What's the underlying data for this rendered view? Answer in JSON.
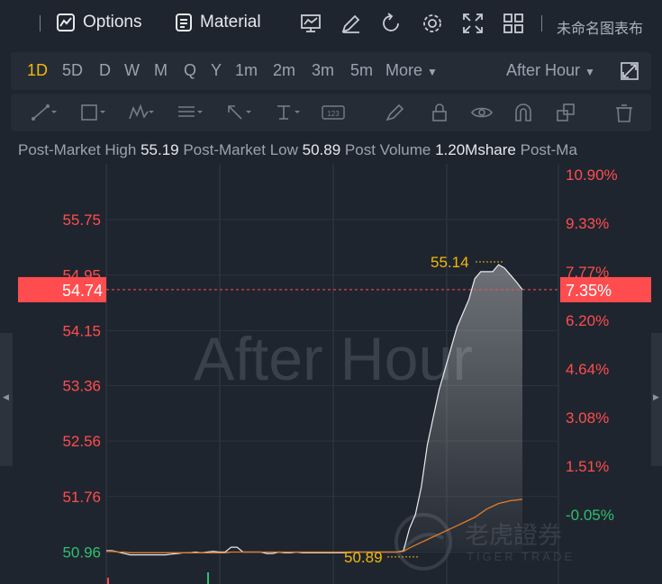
{
  "toolbar": {
    "options_label": "Options",
    "material_label": "Material",
    "truncated_title": "未命名图表布"
  },
  "periods": [
    "1D",
    "5D",
    "D",
    "W",
    "M",
    "Q",
    "Y",
    "1m",
    "2m",
    "3m",
    "5m"
  ],
  "active_period": "1D",
  "more_label": "More",
  "session_select": "After Hour",
  "stats": {
    "high_label": "Post-Market High",
    "high_value": "55.19",
    "low_label": "Post-Market Low",
    "low_value": "50.89",
    "vol_label": "Post Volume",
    "vol_value": "1.20Mshare",
    "next_label": "Post-Ma"
  },
  "watermark": "After Hour",
  "brand": {
    "cn": "老虎證券",
    "en": "TIGER TRADE"
  },
  "colors": {
    "up": "#ff4d4f",
    "down": "#2fbf71",
    "accent": "#f0b90b",
    "avg": "#e07b2a"
  },
  "chart_data": {
    "type": "line",
    "y_left_ticks": [
      "55.75",
      "54.95",
      "54.15",
      "53.36",
      "52.56",
      "51.76",
      "50.96"
    ],
    "y_left_values": [
      55.75,
      54.95,
      54.15,
      53.36,
      52.56,
      51.76,
      50.96
    ],
    "y_right_ticks": [
      "10.90%",
      "9.33%",
      "7.77%",
      "6.20%",
      "4.64%",
      "3.08%",
      "1.51%",
      "-0.05%"
    ],
    "y_right_values": [
      10.9,
      9.33,
      7.77,
      6.2,
      4.64,
      3.08,
      1.51,
      -0.05
    ],
    "ylim": [
      50.5,
      56.45
    ],
    "current_price": "54.74",
    "current_change": "7.35%",
    "current_price_value": 54.74,
    "high_marker": "55.14",
    "high_marker_value": 55.14,
    "low_marker": "50.89",
    "low_marker_value": 50.89,
    "series": [
      {
        "values": [
          50.98,
          50.98,
          50.96,
          50.94,
          50.92,
          50.92,
          50.92,
          50.92,
          50.92,
          50.92,
          50.92,
          50.93,
          50.94,
          50.95,
          50.95,
          50.96,
          50.95,
          50.96,
          50.97,
          50.96,
          50.96,
          51.03,
          51.03,
          50.96,
          50.96,
          50.96,
          50.96,
          50.94,
          50.94,
          50.96,
          50.95,
          50.95,
          50.96,
          50.95,
          50.95,
          50.95,
          50.95,
          50.95,
          50.95,
          50.95,
          50.95,
          50.96,
          50.96,
          50.96,
          50.96,
          50.96,
          50.96,
          50.96,
          50.96,
          50.96,
          50.98,
          51.3,
          51.5,
          51.9,
          52.5,
          52.9,
          53.3,
          53.6,
          53.9,
          54.2,
          54.4,
          54.6,
          54.9,
          55.0,
          55.0,
          55.0,
          55.1,
          55.05,
          54.95,
          54.85,
          54.74
        ]
      },
      {
        "values": [
          50.97,
          50.97,
          50.96,
          50.96,
          50.95,
          50.95,
          50.95,
          50.95,
          50.95,
          50.95,
          50.95,
          50.95,
          50.95,
          50.95,
          50.95,
          50.95,
          50.95,
          50.95,
          50.95,
          50.95,
          50.95,
          50.96,
          50.96,
          50.96,
          50.96,
          50.96,
          50.96,
          50.96,
          50.96,
          50.96,
          50.96,
          50.96,
          50.96,
          50.96,
          50.96,
          50.96,
          50.96,
          50.96,
          50.96,
          50.96,
          50.96,
          50.96,
          50.96,
          50.96,
          50.96,
          50.96,
          50.96,
          50.96,
          50.96,
          50.96,
          50.97,
          51.02,
          51.06,
          51.1,
          51.14,
          51.18,
          51.22,
          51.26,
          51.3,
          51.34,
          51.38,
          51.42,
          51.46,
          51.52,
          51.58,
          51.62,
          51.66,
          51.68,
          51.7,
          51.71,
          51.72
        ]
      }
    ]
  }
}
